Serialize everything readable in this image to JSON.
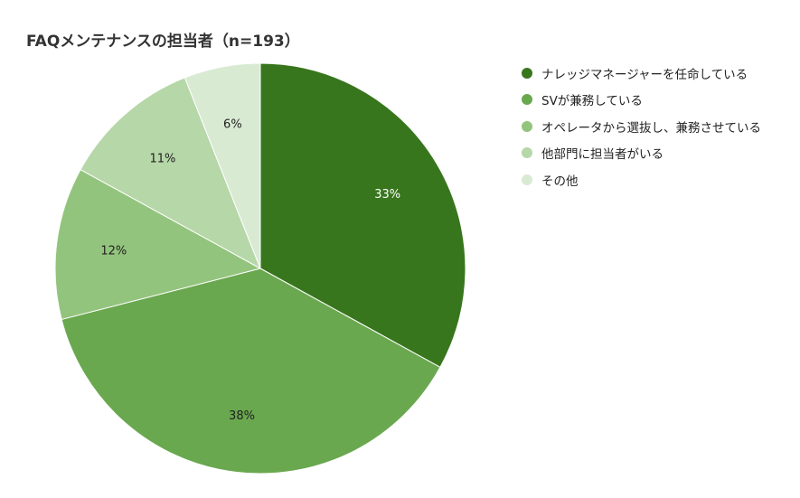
{
  "chart_data": {
    "type": "pie",
    "title": "FAQメンテナンスの担当者（n=193）",
    "slices": [
      {
        "label": "ナレッジマネージャーを任命している",
        "value": 33,
        "display": "33%",
        "color": "#38761d",
        "label_color": "#ffffff"
      },
      {
        "label": "SVが兼務している",
        "value": 38,
        "display": "38%",
        "color": "#6aa84f",
        "label_color": "#222222"
      },
      {
        "label": "オペレータから選抜し、兼務させている",
        "value": 12,
        "display": "12%",
        "color": "#93c47d",
        "label_color": "#222222"
      },
      {
        "label": "他部門に担当者がいる",
        "value": 11,
        "display": "11%",
        "color": "#b6d7a8",
        "label_color": "#222222"
      },
      {
        "label": "その他",
        "value": 6,
        "display": "6%",
        "color": "#d9ead3",
        "label_color": "#222222"
      }
    ],
    "legend_position": "right",
    "start_angle": "12 o'clock",
    "direction": "clockwise"
  }
}
